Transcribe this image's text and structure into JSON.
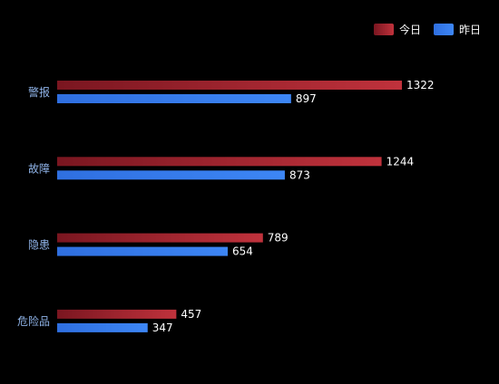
{
  "chart_data": {
    "type": "bar",
    "orientation": "horizontal",
    "categories": [
      "警报",
      "故障",
      "隐患",
      "危险品"
    ],
    "series": [
      {
        "name": "今日",
        "values": [
          1322,
          1244,
          789,
          457
        ],
        "color_start": "#7a1620",
        "color_end": "#c0323c"
      },
      {
        "name": "昨日",
        "values": [
          897,
          873,
          654,
          347
        ],
        "color_start": "#2f6fe0",
        "color_end": "#3d86f5"
      }
    ],
    "xlim": [
      0,
      1322
    ],
    "grid": false,
    "legend_position": "top-right",
    "category_label_color": "#8fb3e8",
    "value_label_color": "#ffffff",
    "background": "#000000"
  }
}
